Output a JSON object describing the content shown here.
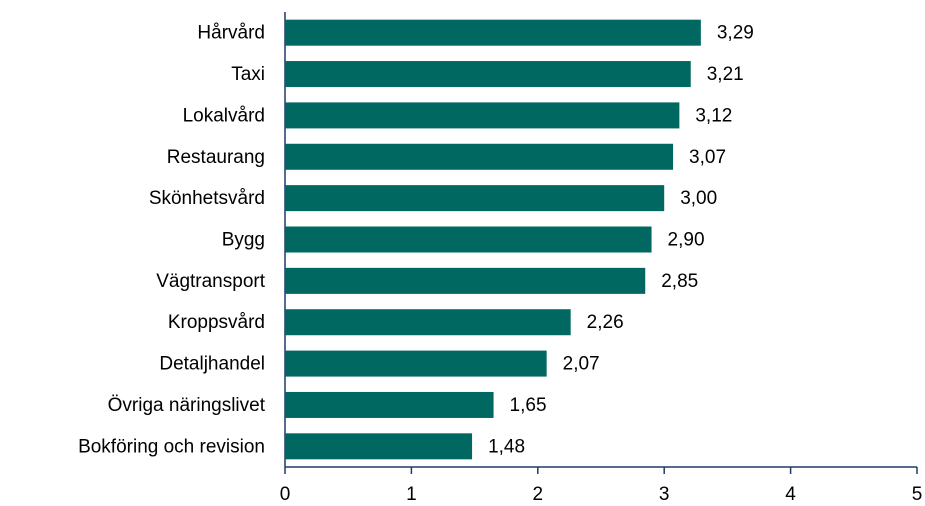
{
  "chart_data": {
    "type": "bar",
    "orientation": "horizontal",
    "categories": [
      "Hårvård",
      "Taxi",
      "Lokalvård",
      "Restaurang",
      "Skönhetsvård",
      "Bygg",
      "Vägtransport",
      "Kroppsvård",
      "Detaljhandel",
      "Övriga näringslivet",
      "Bokföring och revision"
    ],
    "values": [
      3.29,
      3.21,
      3.12,
      3.07,
      3.0,
      2.9,
      2.85,
      2.26,
      2.07,
      1.65,
      1.48
    ],
    "value_labels": [
      "3,29",
      "3,21",
      "3,12",
      "3,07",
      "3,00",
      "2,90",
      "2,85",
      "2,26",
      "2,07",
      "1,65",
      "1,48"
    ],
    "color": "#006861",
    "xlim": [
      0,
      5
    ],
    "xticks": [
      0,
      1,
      2,
      3,
      4,
      5
    ],
    "grid": false
  }
}
